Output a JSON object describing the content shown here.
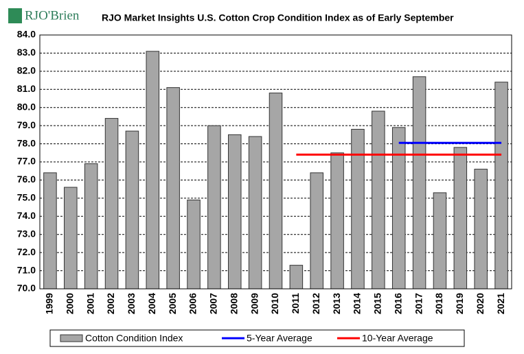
{
  "chart_data": {
    "type": "bar",
    "logo": "RJO'Brien",
    "title": "RJO Market Insights U.S. Cotton Crop Condition Index as of Early September",
    "categories": [
      "1999",
      "2000",
      "2001",
      "2002",
      "2003",
      "2004",
      "2005",
      "2006",
      "2007",
      "2008",
      "2009",
      "2010",
      "2011",
      "2012",
      "2013",
      "2014",
      "2015",
      "2016",
      "2017",
      "2018",
      "2019",
      "2020",
      "2021"
    ],
    "series": [
      {
        "name": "Cotton Condition Index",
        "type": "bar",
        "color": "#a6a6a6",
        "values": [
          76.4,
          75.6,
          76.9,
          79.4,
          78.7,
          83.1,
          81.1,
          74.9,
          79.0,
          78.5,
          78.4,
          80.8,
          71.3,
          76.4,
          77.5,
          78.8,
          79.8,
          78.9,
          81.7,
          75.3,
          77.8,
          76.6,
          81.4
        ]
      },
      {
        "name": "5-Year Average",
        "type": "line",
        "color": "#0000ff",
        "values": [
          null,
          null,
          null,
          null,
          null,
          null,
          null,
          null,
          null,
          null,
          null,
          null,
          null,
          null,
          null,
          null,
          null,
          78.05,
          78.05,
          78.05,
          78.05,
          78.05,
          78.05
        ]
      },
      {
        "name": "10-Year Average",
        "type": "line",
        "color": "#ff0000",
        "values": [
          null,
          null,
          null,
          null,
          null,
          null,
          null,
          null,
          null,
          null,
          null,
          null,
          77.4,
          77.4,
          77.4,
          77.4,
          77.4,
          77.4,
          77.4,
          77.4,
          77.4,
          77.4,
          77.4
        ]
      }
    ],
    "ylim": [
      70,
      84
    ],
    "yticks": [
      {
        "value": 70,
        "label": "70.0"
      },
      {
        "value": 71,
        "label": "71.0"
      },
      {
        "value": 72,
        "label": "72.0"
      },
      {
        "value": 73,
        "label": "73.0"
      },
      {
        "value": 74,
        "label": "74.0"
      },
      {
        "value": 75,
        "label": "75.0"
      },
      {
        "value": 76,
        "label": "76.0"
      },
      {
        "value": 77,
        "label": "77.0"
      },
      {
        "value": 78,
        "label": "78.0"
      },
      {
        "value": 79,
        "label": "79.0"
      },
      {
        "value": 80,
        "label": "80.0"
      },
      {
        "value": 81,
        "label": "81.0"
      },
      {
        "value": 82,
        "label": "82.0"
      },
      {
        "value": 83,
        "label": "83.0"
      },
      {
        "value": 84,
        "label": "84.0"
      }
    ],
    "grid": true
  }
}
